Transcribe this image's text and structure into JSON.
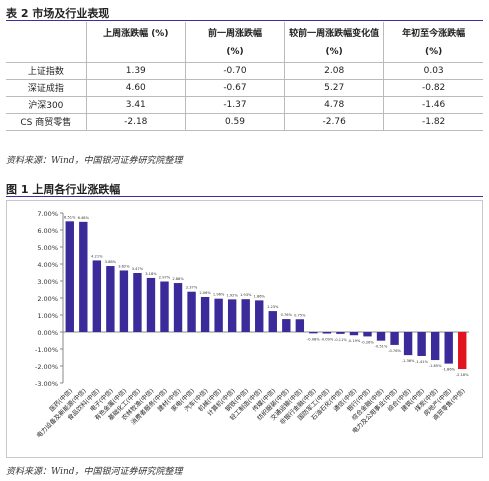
{
  "table_title": "表 2 市场及行业表现",
  "table": {
    "headers": [
      {
        "line1": "",
        "line2": ""
      },
      {
        "line1": "上周涨跌幅 (%)",
        "line2": ""
      },
      {
        "line1": "前一周涨跌幅",
        "line2": "(%)"
      },
      {
        "line1": "较前一周涨跌幅变化值",
        "line2": "(%)"
      },
      {
        "line1": "年初至今涨跌幅",
        "line2": "(%)"
      }
    ],
    "rows": [
      [
        "上证指数",
        "1.39",
        "-0.70",
        "2.08",
        "0.03"
      ],
      [
        "深证成指",
        "4.60",
        "-0.67",
        "5.27",
        "-0.82"
      ],
      [
        "沪深300",
        "3.41",
        "-1.37",
        "4.78",
        "-1.46"
      ],
      [
        "CS 商贸零售",
        "-2.18",
        "0.59",
        "-2.76",
        "-1.82"
      ]
    ]
  },
  "source_1": "资料来源：Wind，中国银河证券研究院整理",
  "chart_title": "图 1 上周各行业涨跌幅",
  "source_2": "资料来源：Wind，中国银河证券研究院整理",
  "chart_data": {
    "type": "bar",
    "title": "",
    "xlabel": "",
    "ylabel": "",
    "ylim": [
      -3.0,
      7.0
    ],
    "yticks": [
      "-3.00%",
      "-2.00%",
      "-1.00%",
      "0.00%",
      "1.00%",
      "2.00%",
      "3.00%",
      "4.00%",
      "5.00%",
      "6.00%",
      "7.00%"
    ],
    "grid": false,
    "legend": "none",
    "bar_color": "#3a2a9a",
    "highlight_color": "#e0141e",
    "highlight_index": 29,
    "categories": [
      "医药(中信)",
      "电力设备及新能源(中信)",
      "食品饮料(中信)",
      "电子(中信)",
      "有色金属(中信)",
      "基础化工(中信)",
      "农林牧渔(中信)",
      "消费者服务(中信)",
      "建材(中信)",
      "家电(中信)",
      "汽车(中信)",
      "机械(中信)",
      "计算机(中信)",
      "钢铁(中信)",
      "轻工制造(中信)",
      "传媒(中信)",
      "纺织服装(中信)",
      "交通运输(中信)",
      "非银行金融(中信)",
      "国防军工(中信)",
      "石油石化(中信)",
      "通信(中信)",
      "银行(中信)",
      "综合金融(中信)",
      "电力及公用事业(中信)",
      "综合(中信)",
      "建筑(中信)",
      "煤炭(中信)",
      "房地产(中信)",
      "商贸零售(中信)"
    ],
    "values": [
      6.51,
      6.48,
      4.21,
      3.88,
      3.62,
      3.47,
      3.18,
      2.97,
      2.88,
      2.37,
      2.06,
      1.96,
      1.92,
      1.93,
      1.86,
      1.23,
      0.76,
      0.75,
      -0.08,
      -0.09,
      -0.11,
      -0.19,
      -0.26,
      -0.51,
      -0.76,
      -1.36,
      -1.41,
      -1.65,
      -1.86,
      -2.18
    ],
    "data_labels": [
      "6.51%",
      "6.48%",
      "4.21%",
      "3.88%",
      "3.62%",
      "3.47%",
      "3.18%",
      "2.97%",
      "2.88%",
      "2.37%",
      "2.06%",
      "1.96%",
      "1.92%",
      "1.93%",
      "1.86%",
      "1.23%",
      "0.76%",
      "0.75%",
      "-0.08%",
      "-0.09%",
      "-0.11%",
      "-0.19%",
      "-0.26%",
      "-0.51%",
      "-0.76%",
      "-1.36%",
      "-1.41%",
      "-1.65%",
      "-1.86%",
      "-2.18%"
    ]
  }
}
